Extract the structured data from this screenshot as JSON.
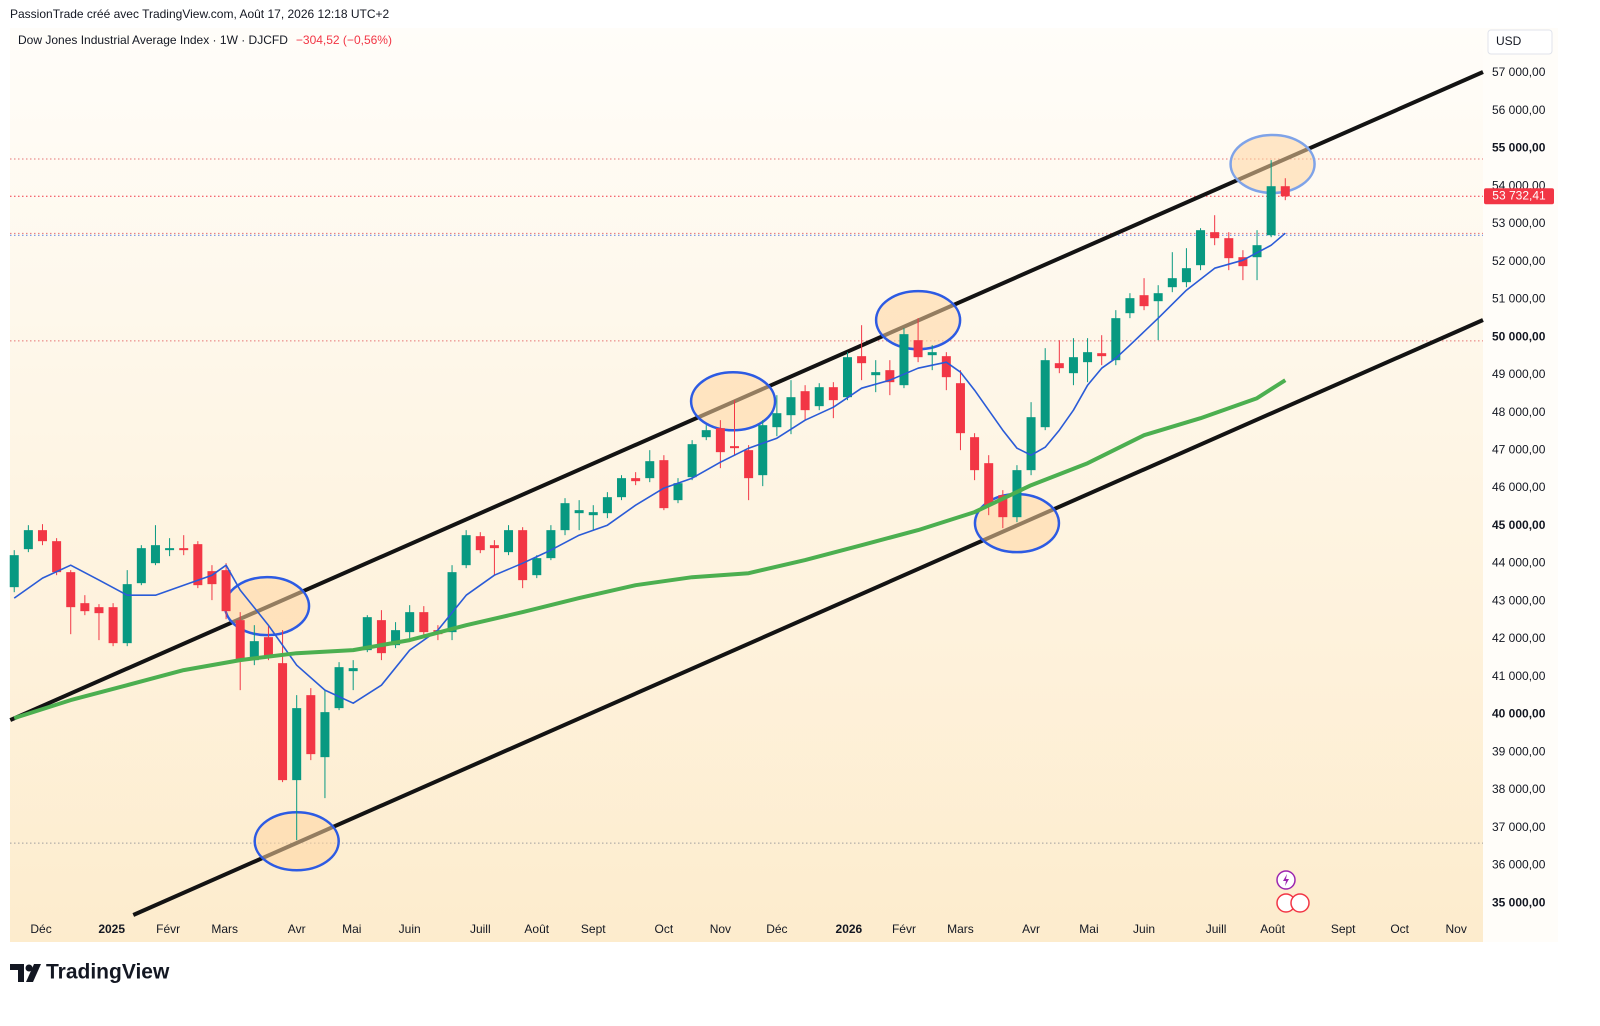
{
  "header": {
    "attribution": "PassionTrade créé avec TradingView.com, Août 17, 2026 12:18 UTC+2",
    "symbol": "Dow Jones Industrial Average Index · 1W · DJCFD",
    "change": "−304,52 (−0,56%)",
    "currency": "USD"
  },
  "footer": {
    "brand": "TradingView"
  },
  "chart_data": {
    "type": "candlestick",
    "grid": false,
    "up_color": "#089981",
    "down_color": "#f23645",
    "xlim": [
      -0.3,
      104
    ],
    "ylim": [
      33970,
      58140
    ],
    "xticks": [
      {
        "value": 1.9,
        "label": "Déc"
      },
      {
        "value": 6.9,
        "label": "2025"
      },
      {
        "value": 10.9,
        "label": "Févr"
      },
      {
        "value": 14.9,
        "label": "Mars"
      },
      {
        "value": 20.0,
        "label": "Avr"
      },
      {
        "value": 23.9,
        "label": "Mai"
      },
      {
        "value": 28.0,
        "label": "Juin"
      },
      {
        "value": 33.0,
        "label": "Juill"
      },
      {
        "value": 37.0,
        "label": "Août"
      },
      {
        "value": 41.0,
        "label": "Sept"
      },
      {
        "value": 46.0,
        "label": "Oct"
      },
      {
        "value": 50.0,
        "label": "Nov"
      },
      {
        "value": 54.0,
        "label": "Déc"
      },
      {
        "value": 59.1,
        "label": "2026"
      },
      {
        "value": 63.0,
        "label": "Févr"
      },
      {
        "value": 67.0,
        "label": "Mars"
      },
      {
        "value": 72.0,
        "label": "Avr"
      },
      {
        "value": 76.1,
        "label": "Mai"
      },
      {
        "value": 80.0,
        "label": "Juin"
      },
      {
        "value": 85.1,
        "label": "Juill"
      },
      {
        "value": 89.1,
        "label": "Août"
      },
      {
        "value": 94.1,
        "label": "Sept"
      },
      {
        "value": 98.1,
        "label": "Oct"
      },
      {
        "value": 102.1,
        "label": "Nov"
      }
    ],
    "yticks": [
      {
        "value": 35000,
        "label": "35 000,00"
      },
      {
        "value": 36000,
        "label": "36 000,00"
      },
      {
        "value": 37000,
        "label": "37 000,00"
      },
      {
        "value": 38000,
        "label": "38 000,00"
      },
      {
        "value": 39000,
        "label": "39 000,00"
      },
      {
        "value": 40000,
        "label": "40 000,00"
      },
      {
        "value": 41000,
        "label": "41 000,00"
      },
      {
        "value": 42000,
        "label": "42 000,00"
      },
      {
        "value": 43000,
        "label": "43 000,00"
      },
      {
        "value": 44000,
        "label": "44 000,00"
      },
      {
        "value": 45000,
        "label": "45 000,00"
      },
      {
        "value": 46000,
        "label": "46 000,00"
      },
      {
        "value": 47000,
        "label": "47 000,00"
      },
      {
        "value": 48000,
        "label": "48 000,00"
      },
      {
        "value": 49000,
        "label": "49 000,00"
      },
      {
        "value": 50000,
        "label": "50 000,00"
      },
      {
        "value": 51000,
        "label": "51 000,00"
      },
      {
        "value": 52000,
        "label": "52 000,00"
      },
      {
        "value": 53000,
        "label": "53 000,00"
      },
      {
        "value": 54000,
        "label": "54 000,00"
      },
      {
        "value": 55000,
        "label": "55 000,00"
      },
      {
        "value": 56000,
        "label": "56 000,00"
      },
      {
        "value": 57000,
        "label": "57 000,00"
      }
    ],
    "candles": {
      "open": [
        43374,
        44381,
        44885,
        44593,
        43772,
        42950,
        42844,
        42844,
        41890,
        43480,
        44010,
        44355,
        44408,
        44514,
        43798,
        43825,
        42500,
        41440,
        42049,
        41360,
        38260,
        40512,
        38869,
        40168,
        41148,
        41705,
        42500,
        41837,
        42182,
        42712,
        42235,
        42182,
        43957,
        44726,
        44487,
        44302,
        44885,
        43692,
        44143,
        44885,
        45335,
        45282,
        45335,
        45759,
        46263,
        46263,
        46740,
        45680,
        46289,
        47349,
        47588,
        47111,
        47005,
        46342,
        47614,
        47932,
        48568,
        48171,
        48674,
        48409,
        49496,
        48992,
        49125,
        48727,
        49920,
        49522,
        49496,
        48780,
        47349,
        46660,
        45812,
        45229,
        46475,
        47614,
        49310,
        49045,
        49337,
        49575,
        49390,
        50635,
        51112,
        50953,
        51324,
        51457,
        51907,
        52782,
        52623,
        52119,
        52119,
        52702,
        54000
      ],
      "high": [
        44355,
        45017,
        45044,
        44673,
        43825,
        43162,
        42924,
        42950,
        43825,
        44487,
        45017,
        44673,
        44752,
        44593,
        43957,
        44010,
        42712,
        42367,
        42341,
        42235,
        40512,
        40698,
        40645,
        41387,
        41440,
        42632,
        42765,
        42447,
        42897,
        42871,
        42367,
        43957,
        44885,
        44832,
        44620,
        45017,
        44964,
        44222,
        45017,
        45733,
        45680,
        45547,
        45892,
        46342,
        46422,
        47005,
        46872,
        46263,
        47270,
        47667,
        47800,
        48330,
        47138,
        47800,
        48462,
        48860,
        48727,
        48780,
        48807,
        49602,
        50317,
        49390,
        49390,
        50238,
        50503,
        49787,
        49602,
        49125,
        47455,
        46872,
        45945,
        46607,
        48277,
        49708,
        49920,
        49973,
        49973,
        50052,
        50715,
        51165,
        51563,
        51377,
        52252,
        52358,
        52888,
        53232,
        52782,
        52305,
        52835,
        54690,
        54212
      ],
      "low": [
        43241,
        44302,
        44487,
        43692,
        42128,
        42632,
        41970,
        41810,
        41810,
        43427,
        43957,
        44196,
        44222,
        43348,
        43030,
        42526,
        40645,
        41307,
        41440,
        38207,
        36670,
        38790,
        37783,
        40115,
        40645,
        41652,
        41440,
        41758,
        41970,
        42023,
        41970,
        41970,
        43878,
        44275,
        43692,
        44222,
        43348,
        43613,
        44090,
        44752,
        44885,
        44885,
        45203,
        45680,
        46077,
        46157,
        45415,
        45600,
        46210,
        47270,
        46528,
        46872,
        45680,
        46051,
        47376,
        47429,
        47800,
        48065,
        47853,
        48330,
        48860,
        48542,
        48462,
        48648,
        49337,
        49125,
        48595,
        47005,
        46210,
        45282,
        44938,
        45097,
        46342,
        47535,
        49045,
        48727,
        48807,
        49257,
        49257,
        50503,
        50715,
        49920,
        51192,
        51324,
        51775,
        52437,
        51775,
        51510,
        51510,
        52649,
        53630
      ],
      "close": [
        44222,
        44885,
        44593,
        43772,
        42844,
        42738,
        42685,
        41890,
        43454,
        44408,
        44487,
        44408,
        44355,
        43427,
        43454,
        42738,
        41440,
        41943,
        41519,
        38260,
        40168,
        38949,
        40062,
        41254,
        41228,
        42579,
        41625,
        42235,
        42712,
        42182,
        42129,
        43772,
        44752,
        44355,
        44408,
        44885,
        43560,
        44143,
        44885,
        45600,
        45415,
        45362,
        45759,
        46263,
        46183,
        46713,
        45468,
        46130,
        47164,
        47535,
        46952,
        47058,
        46263,
        47667,
        47985,
        48409,
        48065,
        48674,
        48330,
        49469,
        49310,
        49072,
        48807,
        50079,
        49469,
        49602,
        48939,
        47455,
        46475,
        45547,
        45229,
        46475,
        47879,
        49390,
        49178,
        49469,
        49602,
        49496,
        50503,
        51033,
        50821,
        51165,
        51563,
        51828,
        52835,
        52623,
        52093,
        51881,
        52437,
        54000,
        53732.41
      ]
    },
    "series": [
      {
        "color": "#2a5bd7",
        "x": [
          0,
          2,
          4,
          6,
          8,
          10,
          12,
          14,
          15,
          16,
          18,
          20,
          22,
          24,
          26,
          28,
          30,
          32,
          34,
          36,
          38,
          40,
          42,
          44,
          46,
          48,
          50,
          52,
          54,
          56,
          58,
          60,
          62,
          64,
          66,
          67,
          68,
          69,
          70,
          71,
          72,
          73,
          74,
          75,
          76,
          77,
          78,
          79,
          81,
          83,
          85,
          87,
          89,
          90
        ],
        "values": [
          43083,
          43613,
          43957,
          43560,
          43162,
          43162,
          43427,
          43692,
          43957,
          43295,
          42367,
          41307,
          40645,
          40300,
          40777,
          41705,
          42235,
          43162,
          43692,
          44010,
          44355,
          44752,
          45017,
          45547,
          46000,
          46263,
          46687,
          47058,
          47323,
          47800,
          48144,
          48648,
          48860,
          49178,
          49337,
          49072,
          48595,
          48065,
          47535,
          47058,
          46872,
          47084,
          47535,
          48065,
          48727,
          49178,
          49443,
          49787,
          50503,
          51245,
          51828,
          52040,
          52437,
          52755
        ]
      },
      {
        "color": "#4caf50",
        "x": [
          0,
          4,
          8,
          12,
          16,
          20,
          24,
          28,
          32,
          36,
          40,
          44,
          48,
          52,
          56,
          60,
          64,
          68,
          72,
          76,
          80,
          84,
          88,
          90
        ],
        "values": [
          39903,
          40380,
          40777,
          41175,
          41440,
          41625,
          41705,
          41970,
          42367,
          42712,
          43083,
          43427,
          43639,
          43745,
          44090,
          44487,
          44885,
          45362,
          46077,
          46660,
          47402,
          47853,
          48383,
          48860
        ]
      }
    ],
    "trendlines": [
      {
        "color": "#131313",
        "x": [
          -0.28,
          104
        ],
        "y": [
          39853,
          57027
        ]
      },
      {
        "color": "#131313",
        "x": [
          8.43,
          104
        ],
        "y": [
          34686,
          50454
        ]
      }
    ],
    "highlights": [
      {
        "x": 17.9,
        "y": 42870,
        "color": "#2d5be3"
      },
      {
        "x": 20.0,
        "y": 36640,
        "color": "#2d5be3"
      },
      {
        "x": 50.9,
        "y": 48300,
        "color": "#2d5be3"
      },
      {
        "x": 64.0,
        "y": 50450,
        "color": "#2d5be3"
      },
      {
        "x": 71.0,
        "y": 45070,
        "color": "#2d5be3"
      },
      {
        "x": 89.1,
        "y": 54590,
        "color": "#7fa3e8"
      }
    ],
    "levels": [
      {
        "value": 54720,
        "color": "#e57373"
      },
      {
        "value": 52750,
        "color": "#e57373"
      },
      {
        "value": 52700,
        "color": "#5b7fe0"
      },
      {
        "value": 49900,
        "color": "#e57373"
      },
      {
        "value": 36590,
        "color": "#9e9e9e"
      }
    ],
    "last_price": {
      "value": 53732.41,
      "label": "53 732,41",
      "color": "#f23645"
    }
  }
}
